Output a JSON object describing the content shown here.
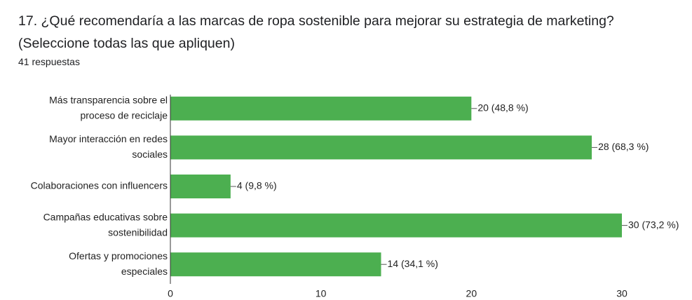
{
  "chart_data": {
    "type": "bar",
    "orientation": "horizontal",
    "title": "17.  ¿Qué recomendaría a las marcas de ropa sostenible para mejorar su estrategia de marketing? (Seleccione todas las que apliquen)",
    "subtitle": "41 respuestas",
    "categories": [
      [
        "Más transparencia sobre el",
        "proceso de reciclaje"
      ],
      [
        "Mayor interacción en redes",
        "sociales"
      ],
      [
        "Colaboraciones con influencers"
      ],
      [
        "Campañas educativas sobre",
        "sostenibilidad"
      ],
      [
        "Ofertas y promociones",
        "especiales"
      ]
    ],
    "values": [
      20,
      28,
      4,
      30,
      14
    ],
    "value_labels": [
      "20 (48,8 %)",
      "28 (68,3 %)",
      "4 (9,8 %)",
      "30 (73,2 %)",
      "14 (34,1 %)"
    ],
    "color": "#4caf50",
    "xlim": [
      0,
      30
    ],
    "xticks": [
      0,
      10,
      20,
      30
    ],
    "grid": false
  }
}
